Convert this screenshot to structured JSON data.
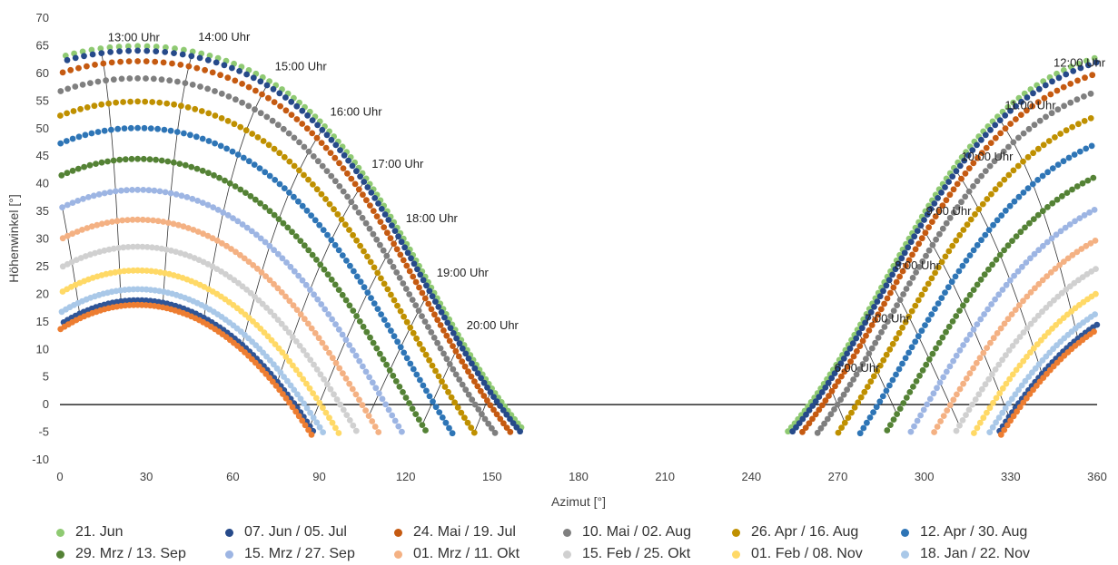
{
  "chart_data": {
    "type": "scatter",
    "title": "",
    "xlabel": "Azimut [°]",
    "ylabel": "Höhenwinkel [°]",
    "xlim": [
      0,
      360
    ],
    "ylim": [
      -10,
      70
    ],
    "x_ticks": [
      "0",
      "30",
      "60",
      "90",
      "120",
      "150",
      "180",
      "210",
      "240",
      "270",
      "300",
      "330",
      "360"
    ],
    "y_ticks": [
      "-10",
      "-5",
      "0",
      "5",
      "10",
      "15",
      "20",
      "25",
      "30",
      "35",
      "40",
      "45",
      "50",
      "55",
      "60",
      "65",
      "70"
    ],
    "grid": false,
    "legend_position": "bottom",
    "series": [
      {
        "name": "21. Jun",
        "color": "#8fca72",
        "dec": 23.44
      },
      {
        "name": "07. Jun / 05. Jul",
        "color": "#264a8a",
        "dec": 22.6
      },
      {
        "name": "24. Mai / 19. Jul",
        "color": "#c55a11",
        "dec": 20.7
      },
      {
        "name": "10. Mai / 02. Aug",
        "color": "#7f7f7f",
        "dec": 17.6
      },
      {
        "name": "26. Apr / 16. Aug",
        "color": "#bf9000",
        "dec": 13.4
      },
      {
        "name": "12. Apr / 30. Aug",
        "color": "#2e75b6",
        "dec": 8.6
      },
      {
        "name": "29. Mrz / 13. Sep",
        "color": "#548235",
        "dec": 3.0
      },
      {
        "name": "15. Mrz / 27. Sep",
        "color": "#9db5e3",
        "dec": -2.6
      },
      {
        "name": "01. Mrz / 11. Okt",
        "color": "#f4b183",
        "dec": -8.0
      },
      {
        "name": "15. Feb / 25. Okt",
        "color": "#d0d0d0",
        "dec": -12.9
      },
      {
        "name": "01. Feb / 08. Nov",
        "color": "#ffd966",
        "dec": -17.2
      },
      {
        "name": "18. Jan / 22. Nov",
        "color": "#a9c8e8",
        "dec": -20.6
      },
      {
        "name": "",
        "color": "#2f5597",
        "dec": -22.6
      },
      {
        "name": "",
        "color": "#ed7d31",
        "dec": -23.44
      }
    ],
    "site": {
      "latitude_deg": 48.5,
      "azimuth_offset_deg": 207
    },
    "hour_labels": [
      {
        "text": "6:00 Uhr",
        "hour": 6
      },
      {
        "text": "7:00 Uhr",
        "hour": 7
      },
      {
        "text": "8:00 Uhr",
        "hour": 8
      },
      {
        "text": "9:00 Uhr",
        "hour": 9
      },
      {
        "text": "10:00 Uhr",
        "hour": 10
      },
      {
        "text": "11:00 Uhr",
        "hour": 11
      },
      {
        "text": "12:00 Uhr",
        "hour": 12
      },
      {
        "text": "13:00 Uhr",
        "hour": 13
      },
      {
        "text": "14:00 Uhr",
        "hour": 14
      },
      {
        "text": "15:00 Uhr",
        "hour": 15
      },
      {
        "text": "16:00 Uhr",
        "hour": 16
      },
      {
        "text": "17:00 Uhr",
        "hour": 17
      },
      {
        "text": "18:00 Uhr",
        "hour": 18
      },
      {
        "text": "19:00 Uhr",
        "hour": 19
      },
      {
        "text": "20:00 Uhr",
        "hour": 20
      }
    ],
    "legend_entries": [
      "21. Jun",
      "07. Jun / 05. Jul",
      "24. Mai / 19. Jul",
      "10. Mai / 02. Aug",
      "26. Apr / 16. Aug",
      "12. Apr / 30. Aug",
      "29. Mrz / 13. Sep",
      "15. Mrz / 27. Sep",
      "01. Mrz / 11. Okt",
      "15. Feb / 25. Okt",
      "01. Feb / 08. Nov",
      "18. Jan / 22. Nov"
    ]
  }
}
